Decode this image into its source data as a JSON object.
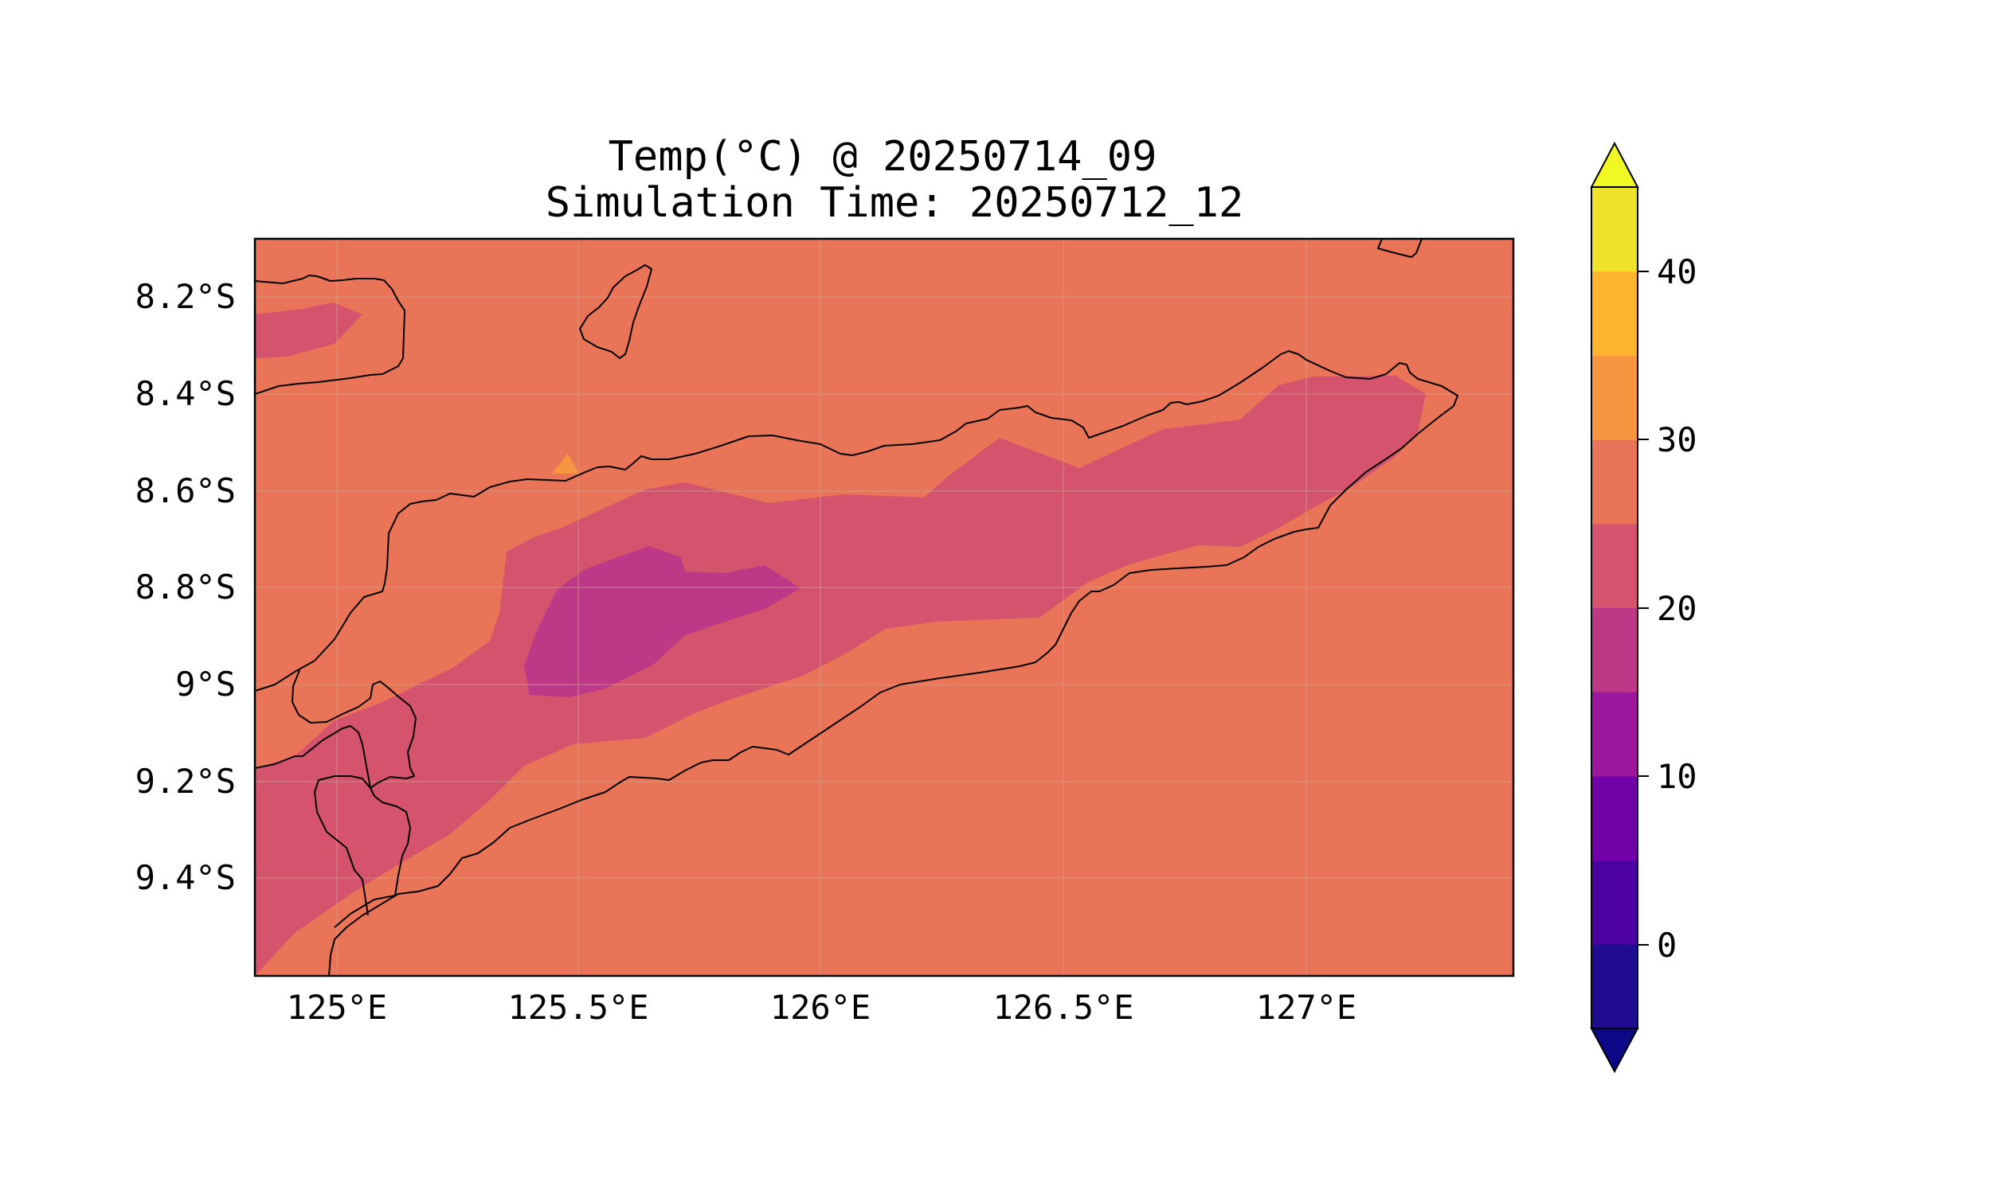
{
  "figure": {
    "title_line1": "Temp(°C) @ 20250714_09",
    "title_line2": "Simulation Time: 20250712_12"
  },
  "map": {
    "lon_range": [
      124.82,
      127.42
    ],
    "lat_range": [
      -9.6,
      -8.08
    ],
    "x_ticks": [
      "125°E",
      "125.5°E",
      "126°E",
      "126.5°E",
      "127°E"
    ],
    "y_ticks": [
      "8.2°S",
      "8.4°S",
      "8.6°S",
      "8.8°S",
      "9°S",
      "9.2°S",
      "9.4°S"
    ],
    "gridlines": true,
    "coastlines": true,
    "field": "Temp(°C)",
    "fill_colors": {
      "background_25_30": "#ea7457",
      "band_20_25": "#d5536d",
      "band_15_20": "#bd3886",
      "band_30_35": "#f89540"
    }
  },
  "colorbar": {
    "labels": [
      "0",
      "10",
      "20",
      "30",
      "40"
    ],
    "levels": [
      -5,
      0,
      5,
      10,
      15,
      20,
      25,
      30,
      35,
      40,
      45
    ],
    "extend": "both",
    "colors": [
      "#1f0c8f",
      "#4c02a1",
      "#7301a8",
      "#9c179e",
      "#bd3786",
      "#d5536f",
      "#ea7457",
      "#f89540",
      "#fdb42f",
      "#f0e22a"
    ],
    "under_color": "#0d0887",
    "over_color": "#f0f921"
  }
}
